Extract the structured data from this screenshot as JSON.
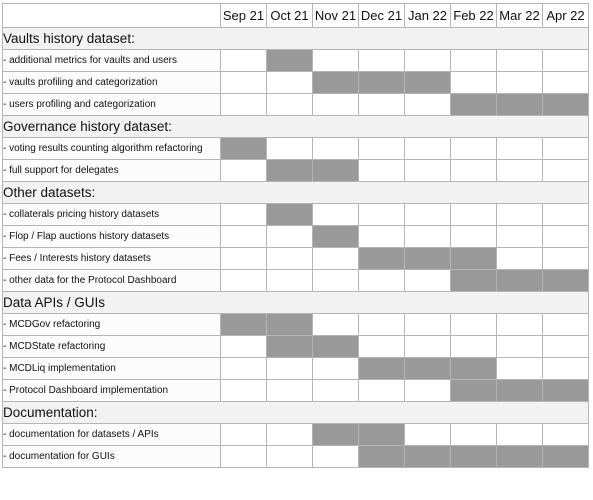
{
  "months": [
    "Sep 21",
    "Oct 21",
    "Nov 21",
    "Dec 21",
    "Jan 22",
    "Feb 22",
    "Mar 22",
    "Apr 22"
  ],
  "colors": {
    "active": "#999999",
    "inactive": "#ffffff",
    "section_bg": "#f2f2f2",
    "border": "#b5b5b5"
  },
  "sections": [
    {
      "title": "Vaults history dataset:",
      "tasks": [
        {
          "label": "- additional metrics for vaults and users",
          "active": [
            1
          ]
        },
        {
          "label": "- vaults profiling and categorization",
          "active": [
            2,
            3,
            4
          ]
        },
        {
          "label": "- users profiling and categorization",
          "active": [
            5,
            6,
            7
          ]
        }
      ]
    },
    {
      "title": "Governance history dataset:",
      "tasks": [
        {
          "label": "- voting results counting algorithm refactoring",
          "active": [
            0
          ]
        },
        {
          "label": "- full support for delegates",
          "active": [
            1,
            2
          ]
        }
      ]
    },
    {
      "title": "Other datasets:",
      "tasks": [
        {
          "label": "- collaterals pricing history datasets",
          "active": [
            1
          ]
        },
        {
          "label": "- Flop / Flap auctions history datasets",
          "active": [
            2
          ]
        },
        {
          "label": "- Fees / Interests history datasets",
          "active": [
            3,
            4,
            5
          ]
        },
        {
          "label": "- other data for the Protocol Dashboard",
          "active": [
            5,
            6,
            7
          ]
        }
      ]
    },
    {
      "title": "Data APIs / GUIs",
      "tasks": [
        {
          "label": "- MCDGov refactoring",
          "active": [
            0,
            1
          ]
        },
        {
          "label": "- MCDState refactoring",
          "active": [
            1,
            2
          ]
        },
        {
          "label": "- MCDLiq implementation",
          "active": [
            3,
            4,
            5
          ]
        },
        {
          "label": "- Protocol Dashboard implementation",
          "active": [
            5,
            6,
            7
          ]
        }
      ]
    },
    {
      "title": "Documentation:",
      "tasks": [
        {
          "label": "- documentation for datasets / APIs",
          "active": [
            2,
            3
          ]
        },
        {
          "label": "- documentation for GUIs",
          "active": [
            3,
            4,
            5,
            6,
            7
          ]
        }
      ]
    }
  ]
}
